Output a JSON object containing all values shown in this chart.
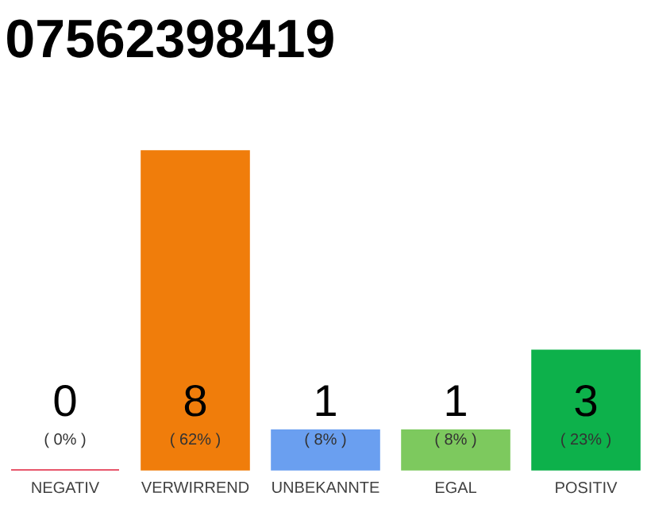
{
  "chart_data": {
    "type": "bar",
    "title": "07562398419",
    "categories": [
      "NEGATIV",
      "VERWIRREND",
      "UNBEKANNTE",
      "EGAL",
      "POSITIV"
    ],
    "values": [
      0,
      8,
      1,
      1,
      3
    ],
    "colors": [
      "#e0203c",
      "#f07d0b",
      "#6a9ff0",
      "#7dc95e",
      "#0db14b"
    ],
    "data_labels": true,
    "annotations": [
      "( 0% )",
      "( 62% )",
      "( 8% )",
      "( 8% )",
      "( 23% )"
    ]
  }
}
